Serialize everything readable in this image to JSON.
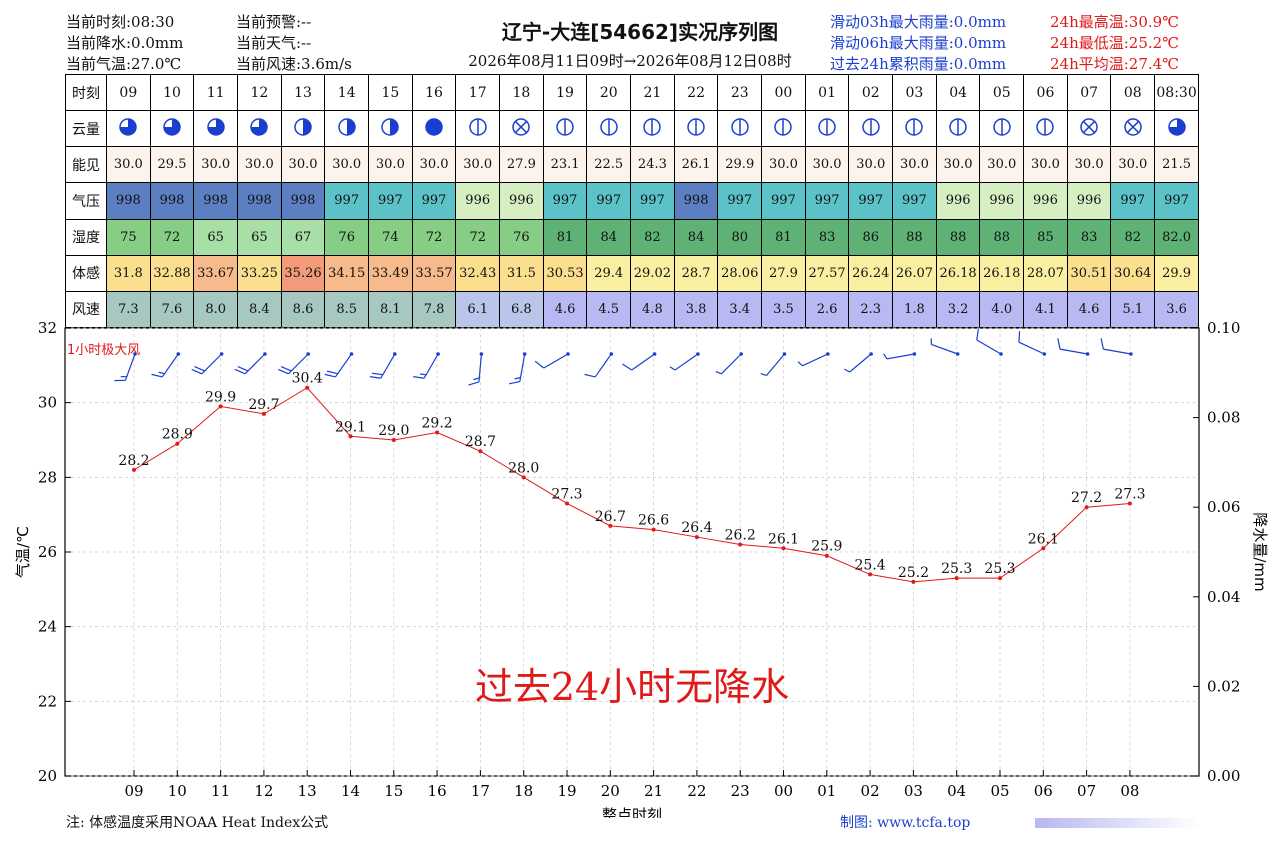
{
  "header": {
    "left1": [
      "当前时刻:08:30",
      "当前降水:0.0mm",
      "当前气温:27.0℃"
    ],
    "left2": [
      "当前预警:--",
      "当前天气:--",
      "当前风速:3.6m/s"
    ],
    "title": "辽宁-大连[54662]实况序列图",
    "subtitle": "2026年08月11日09时→2026年08月12日08时",
    "rain": [
      "滑动03h最大雨量:0.0mm",
      "滑动06h最大雨量:0.0mm",
      "过去24h累积雨量:0.0mm"
    ],
    "temp": [
      "24h最高温:30.9℃",
      "24h最低温:25.2℃",
      "24h平均温:27.4℃"
    ]
  },
  "table": {
    "labels": {
      "time": "时刻",
      "cloud": "云量",
      "vis": "能见",
      "press": "气压",
      "humid": "湿度",
      "feel": "体感",
      "wind": "风速"
    },
    "hours": [
      "09",
      "10",
      "11",
      "12",
      "13",
      "14",
      "15",
      "16",
      "17",
      "18",
      "19",
      "20",
      "21",
      "22",
      "23",
      "00",
      "01",
      "02",
      "03",
      "04",
      "05",
      "06",
      "07",
      "08",
      "08:30"
    ],
    "cloud": [
      75,
      75,
      75,
      75,
      50,
      50,
      50,
      100,
      40,
      -1,
      40,
      40,
      40,
      40,
      40,
      40,
      40,
      40,
      40,
      40,
      40,
      40,
      -1,
      -1,
      75
    ],
    "visibility": [
      "30.0",
      "29.5",
      "30.0",
      "30.0",
      "30.0",
      "30.0",
      "30.0",
      "30.0",
      "30.0",
      "27.9",
      "23.1",
      "22.5",
      "24.3",
      "26.1",
      "29.9",
      "30.0",
      "30.0",
      "30.0",
      "30.0",
      "30.0",
      "30.0",
      "30.0",
      "30.0",
      "30.0",
      "21.5"
    ],
    "pressure": [
      "998",
      "998",
      "998",
      "998",
      "998",
      "997",
      "997",
      "997",
      "996",
      "996",
      "997",
      "997",
      "997",
      "998",
      "997",
      "997",
      "997",
      "997",
      "997",
      "996",
      "996",
      "996",
      "996",
      "997",
      "997"
    ],
    "humidity": [
      "75",
      "72",
      "65",
      "65",
      "67",
      "76",
      "74",
      "72",
      "72",
      "76",
      "81",
      "84",
      "82",
      "84",
      "80",
      "81",
      "83",
      "86",
      "88",
      "88",
      "88",
      "85",
      "83",
      "82",
      "82.0"
    ],
    "feel": [
      "31.8",
      "32.88",
      "33.67",
      "33.25",
      "35.26",
      "34.15",
      "33.49",
      "33.57",
      "32.43",
      "31.5",
      "30.53",
      "29.4",
      "29.02",
      "28.7",
      "28.06",
      "27.9",
      "27.57",
      "26.24",
      "26.07",
      "26.18",
      "26.18",
      "28.07",
      "30.51",
      "30.64",
      "29.9"
    ],
    "wind": [
      "7.3",
      "7.6",
      "8.0",
      "8.4",
      "8.6",
      "8.5",
      "8.1",
      "7.8",
      "6.1",
      "6.8",
      "4.6",
      "4.5",
      "4.8",
      "3.8",
      "3.4",
      "3.5",
      "2.6",
      "2.3",
      "1.8",
      "3.2",
      "4.0",
      "4.1",
      "4.6",
      "5.1",
      "3.6"
    ]
  },
  "chart_data": {
    "type": "line",
    "x": [
      "09",
      "10",
      "11",
      "12",
      "13",
      "14",
      "15",
      "16",
      "17",
      "18",
      "19",
      "20",
      "21",
      "22",
      "23",
      "00",
      "01",
      "02",
      "03",
      "04",
      "05",
      "06",
      "07",
      "08"
    ],
    "series": [
      {
        "values": [
          28.2,
          28.9,
          29.9,
          29.7,
          30.4,
          29.1,
          29.0,
          29.2,
          28.7,
          28.0,
          27.3,
          26.7,
          26.6,
          26.4,
          26.2,
          26.1,
          25.9,
          25.4,
          25.2,
          25.3,
          25.3,
          26.1,
          27.2,
          27.3
        ]
      }
    ],
    "wind_dir_deg": [
      200,
      215,
      225,
      225,
      225,
      215,
      210,
      210,
      185,
      190,
      240,
      215,
      235,
      235,
      225,
      220,
      245,
      230,
      260,
      290,
      300,
      295,
      280,
      280
    ],
    "gust_label": "1小时极大风",
    "no_rain_text": "过去24小时无降水",
    "xlabel": "整点时刻",
    "ylabel": "气温/℃",
    "y2label": "降水量/mm",
    "ylim": [
      20,
      32
    ],
    "y_ticks": [
      20,
      22,
      24,
      26,
      28,
      30,
      32
    ],
    "y2lim": [
      0,
      0.1
    ],
    "y2_ticks": [
      "0.00",
      "0.02",
      "0.04",
      "0.06",
      "0.08",
      "0.10"
    ],
    "grid": true,
    "line_color": "#e01919",
    "barb_color": "#1a3fd0"
  },
  "footer": {
    "note": "注: 体感温度采用NOAA Heat Index公式",
    "credit": "制图: www.tcfa.top"
  }
}
